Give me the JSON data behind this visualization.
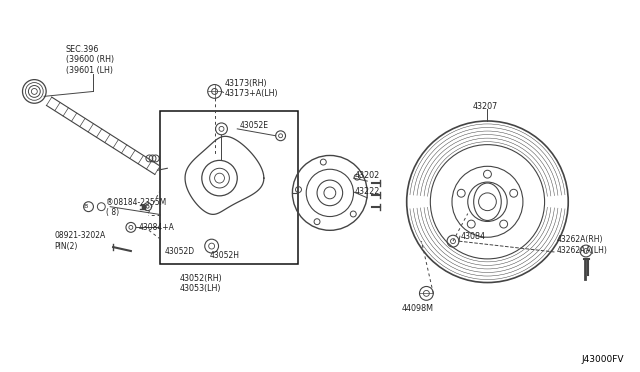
{
  "bg_color": "#ffffff",
  "fig_width": 6.4,
  "fig_height": 3.72,
  "labels": {
    "sec396": "SEC.396\n(39600 (RH)\n(39601 (LH)",
    "p43173": "43173(RH)\n43173+A(LH)",
    "p43052E": "43052E",
    "p43202": "43202",
    "p43222": "43222",
    "p43207": "43207",
    "p43084": "43084",
    "p43262": "43262A(RH)\n43262AA(LH)",
    "p44098M": "44098M",
    "p43052D": "43052D",
    "p43052H": "43052H",
    "p43052": "43052(RH)\n43053(LH)",
    "p08184": "®08184-2355M\n( 8)",
    "p43084A": "43084+A",
    "p08921": "08921-3202A\nPIN(2)",
    "footer": "J43000FV"
  },
  "line_color": "#444444",
  "text_color": "#222222"
}
